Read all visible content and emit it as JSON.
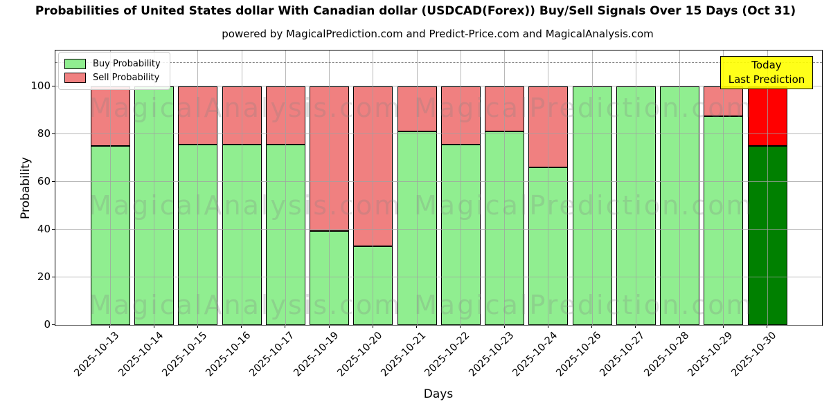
{
  "header": {
    "title": "Probabilities of United States dollar With Canadian dollar (USDCAD(Forex)) Buy/Sell Signals Over 15 Days (Oct 31)",
    "subtitle": "powered by MagicalPrediction.com and Predict-Price.com and MagicalAnalysis.com"
  },
  "chart_data": {
    "type": "bar",
    "stacked": true,
    "title": "Probabilities of United States dollar With Canadian dollar (USDCAD(Forex)) Buy/Sell Signals Over 15 Days (Oct 31)",
    "subtitle": "powered by MagicalPrediction.com and Predict-Price.com and MagicalAnalysis.com",
    "xlabel": "Days",
    "ylabel": "Probability",
    "ylim": [
      0,
      115
    ],
    "yticks": [
      0,
      20,
      40,
      60,
      80,
      100
    ],
    "grid": true,
    "dashed_line_y": 110,
    "legend_position": "upper left",
    "categories": [
      "2025-10-13",
      "2025-10-14",
      "2025-10-15",
      "2025-10-16",
      "2025-10-17",
      "2025-10-19",
      "2025-10-20",
      "2025-10-21",
      "2025-10-22",
      "2025-10-23",
      "2025-10-24",
      "2025-10-26",
      "2025-10-27",
      "2025-10-28",
      "2025-10-29",
      "2025-10-30"
    ],
    "series": [
      {
        "name": "Buy Probability",
        "color": "#90EE90",
        "values": [
          75,
          100,
          75.5,
          75.5,
          75.5,
          39.5,
          33,
          81,
          75.5,
          81,
          66,
          100,
          100,
          100,
          87.5,
          75
        ]
      },
      {
        "name": "Sell Probability",
        "color": "#F08080",
        "values": [
          25,
          0,
          24.5,
          24.5,
          24.5,
          60.5,
          67,
          19,
          24.5,
          19,
          34,
          0,
          0,
          0,
          12.5,
          25
        ]
      }
    ],
    "today_bar": {
      "index": 15,
      "buy_color": "#008000",
      "sell_color": "#FF0000"
    },
    "annotation": {
      "lines": [
        "Today",
        "Last Prediction"
      ],
      "bg_color": "#FFFF00"
    },
    "colors": {
      "edge": "#000000",
      "grid": "#a0a0a0",
      "dashed": "#7f7f7f"
    }
  },
  "watermarks": {
    "left_text": "MagicalAnalysis.com",
    "right_text": "MagicalPrediction.com"
  }
}
